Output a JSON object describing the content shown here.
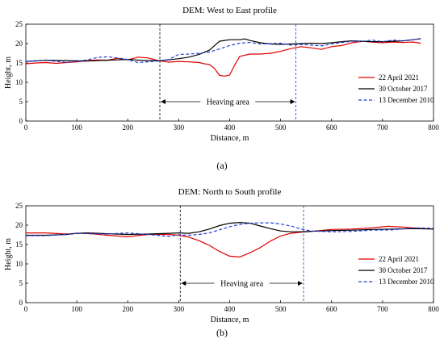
{
  "chart_data": [
    {
      "type": "line",
      "title": "DEM: West to East profile",
      "xlabel": "Distance, m",
      "ylabel": "Height, m",
      "xlim": [
        0,
        800
      ],
      "ylim": [
        0,
        25
      ],
      "xticks": [
        0,
        100,
        200,
        300,
        400,
        500,
        600,
        700,
        800
      ],
      "yticks": [
        0,
        5,
        10,
        15,
        20,
        25
      ],
      "grid": false,
      "legend_position": "right",
      "caption": "(a)",
      "annotation": {
        "text": "Heaving area",
        "x_start": 263,
        "x_end": 530,
        "y": 5
      },
      "series": [
        {
          "name": "22 April 2021",
          "color": "#e00000",
          "style": "solid",
          "x": [
            0,
            20,
            40,
            60,
            80,
            100,
            120,
            140,
            160,
            180,
            200,
            220,
            240,
            260,
            280,
            300,
            320,
            340,
            350,
            360,
            370,
            380,
            390,
            400,
            410,
            420,
            440,
            460,
            480,
            500,
            520,
            540,
            560,
            580,
            600,
            620,
            640,
            660,
            680,
            700,
            720,
            740,
            760,
            775
          ],
          "y": [
            14.8,
            15.0,
            15.1,
            14.9,
            15.1,
            15.3,
            15.6,
            15.8,
            15.7,
            16.2,
            15.8,
            16.5,
            16.3,
            15.6,
            15.2,
            15.4,
            15.3,
            15.1,
            14.8,
            14.6,
            13.6,
            11.8,
            11.6,
            11.9,
            14.5,
            16.7,
            17.3,
            17.3,
            17.5,
            18.0,
            18.7,
            19.2,
            18.9,
            18.5,
            19.2,
            19.5,
            20.2,
            20.6,
            20.4,
            20.2,
            20.4,
            20.3,
            20.4,
            20.1
          ]
        },
        {
          "name": "30 October 2017",
          "color": "#000000",
          "style": "solid",
          "x": [
            0,
            40,
            80,
            120,
            160,
            200,
            240,
            260,
            280,
            300,
            320,
            340,
            360,
            380,
            400,
            420,
            430,
            440,
            460,
            480,
            500,
            520,
            540,
            560,
            580,
            600,
            620,
            640,
            660,
            680,
            700,
            720,
            740,
            760,
            775
          ],
          "y": [
            15.4,
            15.7,
            15.6,
            15.5,
            15.7,
            15.9,
            15.6,
            15.6,
            15.8,
            16.1,
            16.5,
            17.2,
            18.3,
            20.6,
            21.0,
            21.0,
            21.2,
            20.8,
            20.2,
            19.9,
            19.8,
            19.9,
            20.0,
            20.1,
            20.0,
            20.2,
            20.5,
            20.7,
            20.6,
            20.5,
            20.5,
            20.6,
            20.7,
            21.0,
            21.3
          ]
        },
        {
          "name": "13 December 2010",
          "color": "#1f3fd8",
          "style": "dashed",
          "x": [
            0,
            40,
            80,
            120,
            140,
            160,
            180,
            200,
            220,
            240,
            260,
            280,
            300,
            320,
            340,
            360,
            380,
            400,
            420,
            440,
            460,
            480,
            500,
            520,
            540,
            560,
            580,
            600,
            620,
            640,
            660,
            680,
            700,
            720,
            740,
            760,
            775
          ],
          "y": [
            15.4,
            15.7,
            15.1,
            15.8,
            16.4,
            16.6,
            16.3,
            15.9,
            15.1,
            15.3,
            15.5,
            15.9,
            17.2,
            17.3,
            17.5,
            17.8,
            18.6,
            19.5,
            20.1,
            20.3,
            19.9,
            20.0,
            20.1,
            19.6,
            19.8,
            19.6,
            19.4,
            19.9,
            20.3,
            20.6,
            20.6,
            20.9,
            20.5,
            20.9,
            20.7,
            21.0,
            21.2
          ]
        }
      ]
    },
    {
      "type": "line",
      "title": "DEM: North to South profile",
      "xlabel": "Distance, m",
      "ylabel": "Height, m",
      "xlim": [
        0,
        800
      ],
      "ylim": [
        0,
        25
      ],
      "xticks": [
        0,
        100,
        200,
        300,
        400,
        500,
        600,
        700,
        800
      ],
      "yticks": [
        0,
        5,
        10,
        15,
        20,
        25
      ],
      "grid": false,
      "legend_position": "right",
      "caption": "(b)",
      "annotation": {
        "text": "Heaving area",
        "x_start": 303,
        "x_end": 545,
        "y": 5
      },
      "series": [
        {
          "name": "22 April 2021",
          "color": "#e00000",
          "style": "solid",
          "x": [
            0,
            40,
            80,
            100,
            120,
            160,
            200,
            240,
            280,
            300,
            320,
            340,
            360,
            380,
            400,
            420,
            440,
            460,
            480,
            500,
            520,
            540,
            560,
            600,
            640,
            680,
            710,
            740,
            770,
            800
          ],
          "y": [
            18.0,
            18.0,
            17.7,
            17.9,
            17.9,
            17.4,
            17.0,
            17.6,
            17.6,
            17.4,
            16.9,
            16.0,
            14.8,
            13.2,
            12.0,
            11.8,
            12.9,
            14.2,
            15.9,
            17.2,
            17.9,
            18.2,
            18.4,
            18.9,
            19.0,
            19.3,
            19.7,
            19.5,
            19.2,
            19.0
          ]
        },
        {
          "name": "30 October 2017",
          "color": "#000000",
          "style": "solid",
          "x": [
            0,
            40,
            80,
            100,
            120,
            160,
            200,
            240,
            280,
            300,
            320,
            340,
            360,
            380,
            400,
            420,
            440,
            460,
            480,
            500,
            520,
            540,
            560,
            600,
            640,
            680,
            720,
            760,
            800
          ],
          "y": [
            17.4,
            17.4,
            17.6,
            17.9,
            18.0,
            17.8,
            17.6,
            17.7,
            17.9,
            18.0,
            17.9,
            18.3,
            19.0,
            19.9,
            20.5,
            20.7,
            20.5,
            19.8,
            19.1,
            18.5,
            18.3,
            18.3,
            18.4,
            18.6,
            18.7,
            18.9,
            19.0,
            19.1,
            19.0
          ]
        },
        {
          "name": "13 December 2010",
          "color": "#1f3fd8",
          "style": "dashed",
          "x": [
            0,
            40,
            80,
            100,
            120,
            160,
            200,
            240,
            280,
            300,
            320,
            340,
            360,
            380,
            400,
            420,
            440,
            460,
            480,
            500,
            520,
            540,
            560,
            600,
            640,
            680,
            720,
            760,
            800
          ],
          "y": [
            17.3,
            17.3,
            17.6,
            17.9,
            17.8,
            17.7,
            18.0,
            17.6,
            17.1,
            17.5,
            17.4,
            17.6,
            18.0,
            18.8,
            19.6,
            20.2,
            20.5,
            20.6,
            20.6,
            20.3,
            19.8,
            19.0,
            18.5,
            18.3,
            18.4,
            18.7,
            18.8,
            19.3,
            19.2
          ]
        }
      ]
    }
  ]
}
